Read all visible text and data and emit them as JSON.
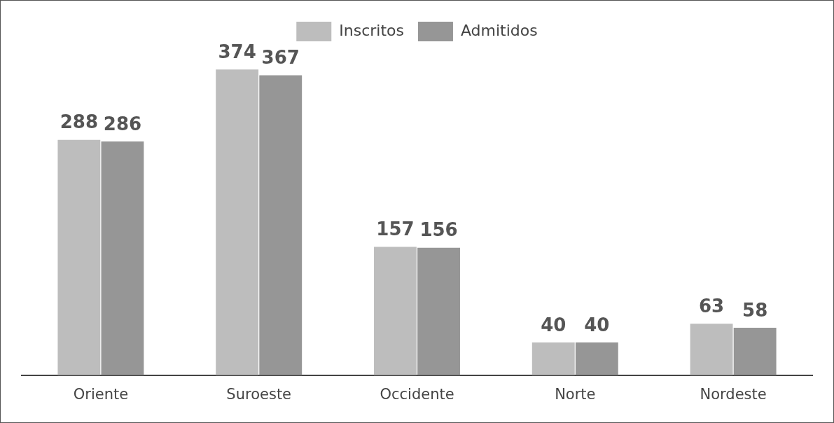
{
  "chart_data": {
    "type": "bar",
    "categories": [
      "Oriente",
      "Suroeste",
      "Occidente",
      "Norte",
      "Nordeste"
    ],
    "series": [
      {
        "name": "Inscritos",
        "color": "#bdbdbd",
        "values": [
          288,
          374,
          157,
          40,
          63
        ]
      },
      {
        "name": "Admitidos",
        "color": "#969696",
        "values": [
          286,
          367,
          156,
          40,
          58
        ]
      }
    ],
    "data_labels": true,
    "legend": "top",
    "grid": false
  }
}
